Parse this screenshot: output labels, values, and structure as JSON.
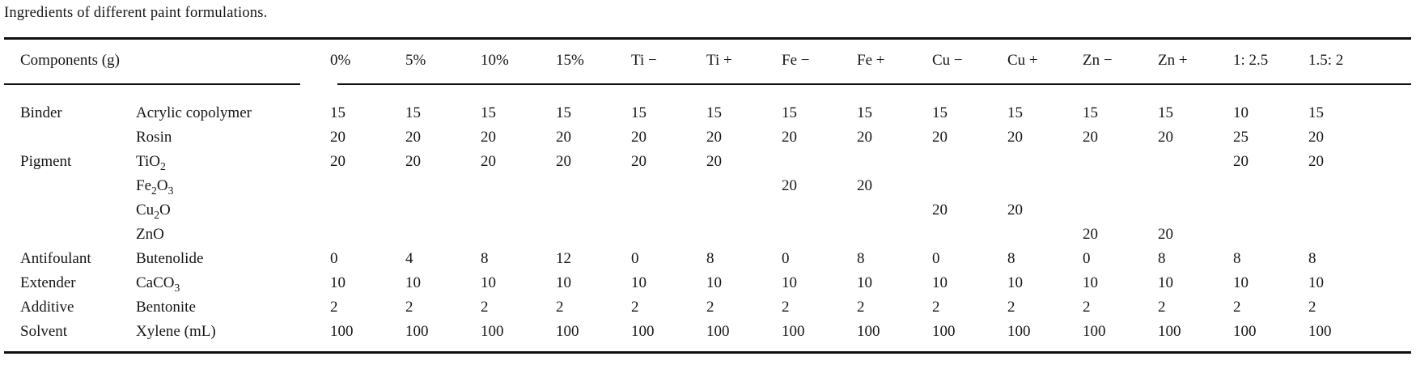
{
  "title": "Ingredients of different paint formulations.",
  "table": {
    "components_label": "Components (g)",
    "columns": [
      "0%",
      "5%",
      "10%",
      "15%",
      "Ti −",
      "Ti +",
      "Fe −",
      "Fe +",
      "Cu −",
      "Cu +",
      "Zn −",
      "Zn +",
      "1: 2.5",
      "1.5: 2"
    ],
    "rows": [
      {
        "category": "Binder",
        "component": "Acrylic copolymer",
        "values": [
          "15",
          "15",
          "15",
          "15",
          "15",
          "15",
          "15",
          "15",
          "15",
          "15",
          "15",
          "15",
          "10",
          "15"
        ]
      },
      {
        "category": "",
        "component": "Rosin",
        "values": [
          "20",
          "20",
          "20",
          "20",
          "20",
          "20",
          "20",
          "20",
          "20",
          "20",
          "20",
          "20",
          "25",
          "20"
        ]
      },
      {
        "category": "Pigment",
        "component": "TiO~2~",
        "values": [
          "20",
          "20",
          "20",
          "20",
          "20",
          "20",
          "",
          "",
          "",
          "",
          "",
          "",
          "20",
          "20"
        ]
      },
      {
        "category": "",
        "component": "Fe~2~O~3~",
        "values": [
          "",
          "",
          "",
          "",
          "",
          "",
          "20",
          "20",
          "",
          "",
          "",
          "",
          "",
          ""
        ]
      },
      {
        "category": "",
        "component": "Cu~2~O",
        "values": [
          "",
          "",
          "",
          "",
          "",
          "",
          "",
          "",
          "20",
          "20",
          "",
          "",
          "",
          ""
        ]
      },
      {
        "category": "",
        "component": "ZnO",
        "values": [
          "",
          "",
          "",
          "",
          "",
          "",
          "",
          "",
          "",
          "",
          "20",
          "20",
          "",
          ""
        ]
      },
      {
        "category": "Antifoulant",
        "component": "Butenolide",
        "values": [
          "0",
          "4",
          "8",
          "12",
          "0",
          "8",
          "0",
          "8",
          "0",
          "8",
          "0",
          "8",
          "8",
          "8"
        ]
      },
      {
        "category": "Extender",
        "component": "CaCO~3~",
        "values": [
          "10",
          "10",
          "10",
          "10",
          "10",
          "10",
          "10",
          "10",
          "10",
          "10",
          "10",
          "10",
          "10",
          "10"
        ]
      },
      {
        "category": "Additive",
        "component": "Bentonite",
        "values": [
          "2",
          "2",
          "2",
          "2",
          "2",
          "2",
          "2",
          "2",
          "2",
          "2",
          "2",
          "2",
          "2",
          "2"
        ]
      },
      {
        "category": "Solvent",
        "component": "Xylene (mL)",
        "values": [
          "100",
          "100",
          "100",
          "100",
          "100",
          "100",
          "100",
          "100",
          "100",
          "100",
          "100",
          "100",
          "100",
          "100"
        ]
      }
    ]
  },
  "chart_data": {
    "type": "table",
    "title": "Ingredients of different paint formulations.",
    "row_header_label": "Components (g)",
    "columns": [
      "0%",
      "5%",
      "10%",
      "15%",
      "Ti −",
      "Ti +",
      "Fe −",
      "Fe +",
      "Cu −",
      "Cu +",
      "Zn −",
      "Zn +",
      "1: 2.5",
      "1.5: 2"
    ]
  }
}
